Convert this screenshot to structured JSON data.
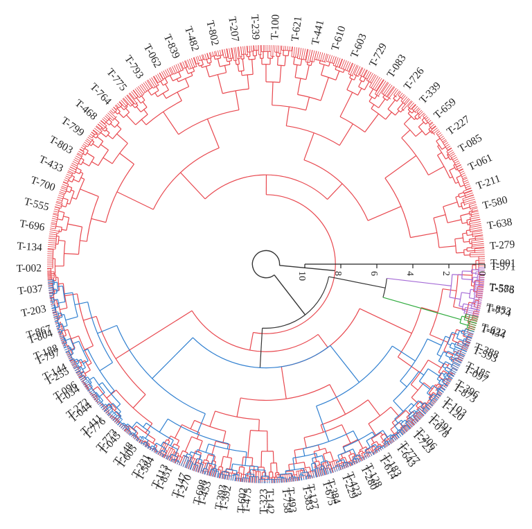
{
  "dendrogram": {
    "colors": {
      "red": "#e8474e",
      "blue": "#2f7fd0",
      "green": "#2eaa3c",
      "purple": "#a46ad6",
      "black": "#333333"
    },
    "scale": {
      "ticks": [
        "0",
        "2",
        "4",
        "6",
        "8",
        "10"
      ],
      "max": 10
    },
    "labels": [
      {
        "text": "T-001",
        "angle": 0
      },
      {
        "text": "T-576",
        "angle": 6.2
      },
      {
        "text": "T-774",
        "angle": 11.6
      },
      {
        "text": "T-434",
        "angle": 16.8
      },
      {
        "text": "T-593",
        "angle": 22.6
      },
      {
        "text": "T-097",
        "angle": 27.9
      },
      {
        "text": "T-873",
        "angle": 33.2
      },
      {
        "text": "T-120",
        "angle": 38.4
      },
      {
        "text": "T-078",
        "angle": 43.6
      },
      {
        "text": "T-723",
        "angle": 48.8
      },
      {
        "text": "T-643",
        "angle": 54.0
      },
      {
        "text": "T-614",
        "angle": 59.2
      },
      {
        "text": "T-280",
        "angle": 64.4
      },
      {
        "text": "T-229",
        "angle": 69.6
      },
      {
        "text": "T-675",
        "angle": 74.8
      },
      {
        "text": "T-383",
        "angle": 80.0
      },
      {
        "text": "T-758",
        "angle": 85.2
      },
      {
        "text": "T-323",
        "angle": 90.4
      },
      {
        "text": "T-602",
        "angle": 95.6
      },
      {
        "text": "T-393",
        "angle": 100.8
      },
      {
        "text": "T-698",
        "angle": 106.0
      },
      {
        "text": "T-147",
        "angle": 111.2
      },
      {
        "text": "T-113",
        "angle": 116.4
      },
      {
        "text": "T-231",
        "angle": 121.6
      },
      {
        "text": "T-148",
        "angle": 126.8
      },
      {
        "text": "T-773",
        "angle": 132.0
      },
      {
        "text": "T-411",
        "angle": 137.2
      },
      {
        "text": "T-272",
        "angle": 142.4
      },
      {
        "text": "T-096",
        "angle": 147.6
      },
      {
        "text": "T-144",
        "angle": 152.8
      },
      {
        "text": "T-188",
        "angle": 158.0
      },
      {
        "text": "T-867",
        "angle": 163.2
      },
      {
        "text": "T-203",
        "angle": 168.4
      },
      {
        "text": "T-037",
        "angle": 173.6
      },
      {
        "text": "T-002",
        "angle": 178.8
      },
      {
        "text": "T-134",
        "angle": 184.0
      },
      {
        "text": "T-696",
        "angle": 189.2
      },
      {
        "text": "T-555",
        "angle": 194.4
      },
      {
        "text": "T-700",
        "angle": 199.6
      },
      {
        "text": "T-433",
        "angle": 204.8
      },
      {
        "text": "T-803",
        "angle": 210.0
      },
      {
        "text": "T-799",
        "angle": 215.2
      },
      {
        "text": "T-468",
        "angle": 220.4
      },
      {
        "text": "T-764",
        "angle": 225.6
      },
      {
        "text": "T-775",
        "angle": 230.8
      },
      {
        "text": "T-793",
        "angle": 236.0
      },
      {
        "text": "T-062",
        "angle": 241.2
      },
      {
        "text": "T-839",
        "angle": 246.4
      },
      {
        "text": "T-482",
        "angle": 251.6
      },
      {
        "text": "T-802",
        "angle": 256.8
      },
      {
        "text": "T-207",
        "angle": 262.0
      },
      {
        "text": "T-239",
        "angle": 267.2
      },
      {
        "text": "T-100",
        "angle": 272.4
      },
      {
        "text": "T-621",
        "angle": 277.6
      },
      {
        "text": "T-441",
        "angle": 282.8
      },
      {
        "text": "T-610",
        "angle": 288.0
      },
      {
        "text": "T-603",
        "angle": 293.2
      },
      {
        "text": "T-729",
        "angle": 298.4
      },
      {
        "text": "T-083",
        "angle": 303.6
      },
      {
        "text": "T-726",
        "angle": 308.8
      },
      {
        "text": "T-339",
        "angle": 314.0
      },
      {
        "text": "T-659",
        "angle": 319.2
      },
      {
        "text": "T-227",
        "angle": 324.4
      },
      {
        "text": "T-085",
        "angle": 329.6
      },
      {
        "text": "T-061",
        "angle": 334.8
      },
      {
        "text": "T-211",
        "angle": 340.0
      },
      {
        "text": "T-580",
        "angle": 345.2
      },
      {
        "text": "T-638",
        "angle": 350.4
      },
      {
        "text": "T-279",
        "angle": 355.6
      },
      {
        "text": "T-571",
        "angle": 360.8
      },
      {
        "text": "T-583",
        "angle": 366.0
      },
      {
        "text": "T-853",
        "angle": 371.2
      },
      {
        "text": "T-622",
        "angle": 376.4
      },
      {
        "text": "T-388",
        "angle": 381.6
      },
      {
        "text": "T-185",
        "angle": 386.8
      },
      {
        "text": "T-396",
        "angle": 392.0
      },
      {
        "text": "T-103",
        "angle": 397.2
      },
      {
        "text": "T-391",
        "angle": 402.4
      },
      {
        "text": "T-206",
        "angle": 407.6
      },
      {
        "text": "T-777",
        "angle": 412.8
      },
      {
        "text": "T-183",
        "angle": 418.0
      },
      {
        "text": "T-128",
        "angle": 423.2
      },
      {
        "text": "T-423",
        "angle": 428.4
      },
      {
        "text": "T-384",
        "angle": 433.6
      },
      {
        "text": "T-127",
        "angle": 438.8
      },
      {
        "text": "T-493",
        "angle": 444.0
      },
      {
        "text": "T-142",
        "angle": 449.2
      },
      {
        "text": "T-475",
        "angle": 454.4
      },
      {
        "text": "T-392",
        "angle": 459.6
      },
      {
        "text": "T-453",
        "angle": 464.8
      },
      {
        "text": "T-270",
        "angle": 470.0
      },
      {
        "text": "T-851",
        "angle": 475.2
      },
      {
        "text": "T-584",
        "angle": 480.4
      },
      {
        "text": "T-605",
        "angle": 485.6
      },
      {
        "text": "T-045",
        "angle": 490.8
      },
      {
        "text": "T-776",
        "angle": 496.0
      },
      {
        "text": "T-044",
        "angle": 501.2
      },
      {
        "text": "T-034",
        "angle": 506.4
      },
      {
        "text": "T-255",
        "angle": 511.6
      },
      {
        "text": "T-797",
        "angle": 516.8
      },
      {
        "text": "T-804",
        "angle": 522.0
      }
    ]
  }
}
